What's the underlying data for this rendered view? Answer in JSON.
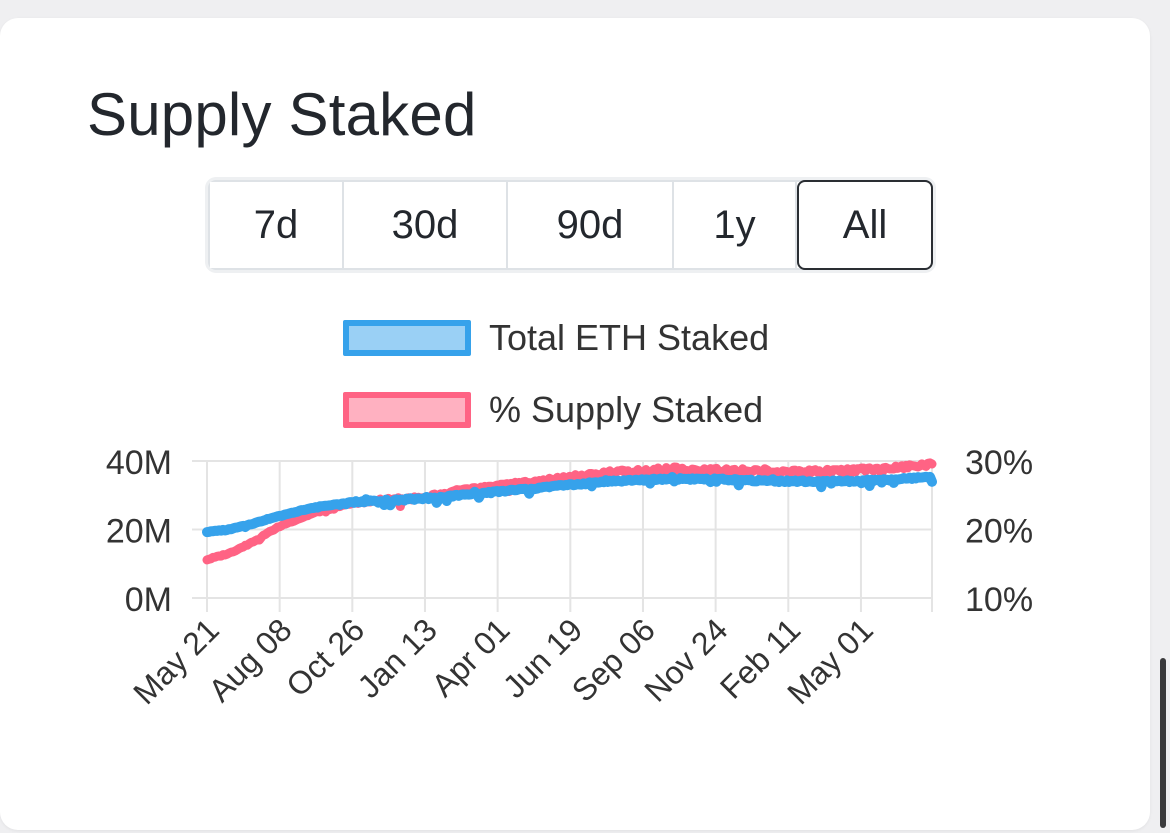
{
  "title": "Supply Staked",
  "ranges": [
    "7d",
    "30d",
    "90d",
    "1y",
    "All"
  ],
  "active_range": "All",
  "colors": {
    "blue_line": "#36a2eb",
    "blue_fill": "#9ad0f5",
    "pink_line": "#ff6384",
    "pink_fill": "#ffb1c1",
    "grid": "#e4e4e4",
    "text": "#333333"
  },
  "chart_data": {
    "type": "line",
    "legend": [
      "Total ETH Staked",
      "% Supply Staked"
    ],
    "legend_position": "top",
    "y_left": {
      "ticks": [
        "0M",
        "20M",
        "40M"
      ],
      "range": [
        0,
        40
      ]
    },
    "y_right": {
      "ticks": [
        "10%",
        "20%",
        "30%"
      ],
      "range": [
        10,
        30
      ]
    },
    "x_ticks": [
      "May 21",
      "Aug 08",
      "Oct 26",
      "Jan 13",
      "Apr 01",
      "Jun 19",
      "Sep 06",
      "Nov 24",
      "Feb 11",
      "May 01"
    ],
    "grid": true,
    "series": [
      {
        "name": "Total ETH Staked",
        "axis": "left",
        "color": "#36a2eb",
        "x": [
          0,
          0.3,
          0.6,
          1.0,
          1.5,
          2.0,
          2.5,
          3.0,
          3.5,
          4.0,
          4.5,
          5.0,
          5.5,
          6.0,
          6.5,
          7.0,
          7.5,
          8.0,
          8.5,
          9.0,
          9.5,
          10.0
        ],
        "values": [
          19.3,
          20.0,
          21.5,
          24.0,
          26.5,
          28.0,
          28.5,
          29.0,
          30.0,
          31.0,
          32.0,
          33.0,
          34.0,
          34.5,
          34.8,
          34.7,
          34.3,
          34.1,
          34.0,
          34.2,
          34.6,
          35.5
        ]
      },
      {
        "name": "% Supply Staked",
        "axis": "right",
        "color": "#ff6384",
        "x": [
          0,
          0.3,
          0.6,
          1.0,
          1.5,
          2.0,
          2.5,
          3.0,
          3.5,
          4.0,
          4.5,
          5.0,
          5.5,
          6.0,
          6.5,
          7.0,
          7.5,
          8.0,
          8.5,
          9.0,
          9.5,
          10.0
        ],
        "values": [
          15.6,
          16.5,
          18.0,
          20.5,
          22.5,
          23.8,
          24.3,
          24.6,
          25.7,
          26.3,
          27.0,
          27.6,
          28.2,
          28.6,
          28.9,
          28.7,
          28.6,
          28.5,
          28.5,
          28.7,
          29.0,
          29.5
        ]
      }
    ]
  }
}
